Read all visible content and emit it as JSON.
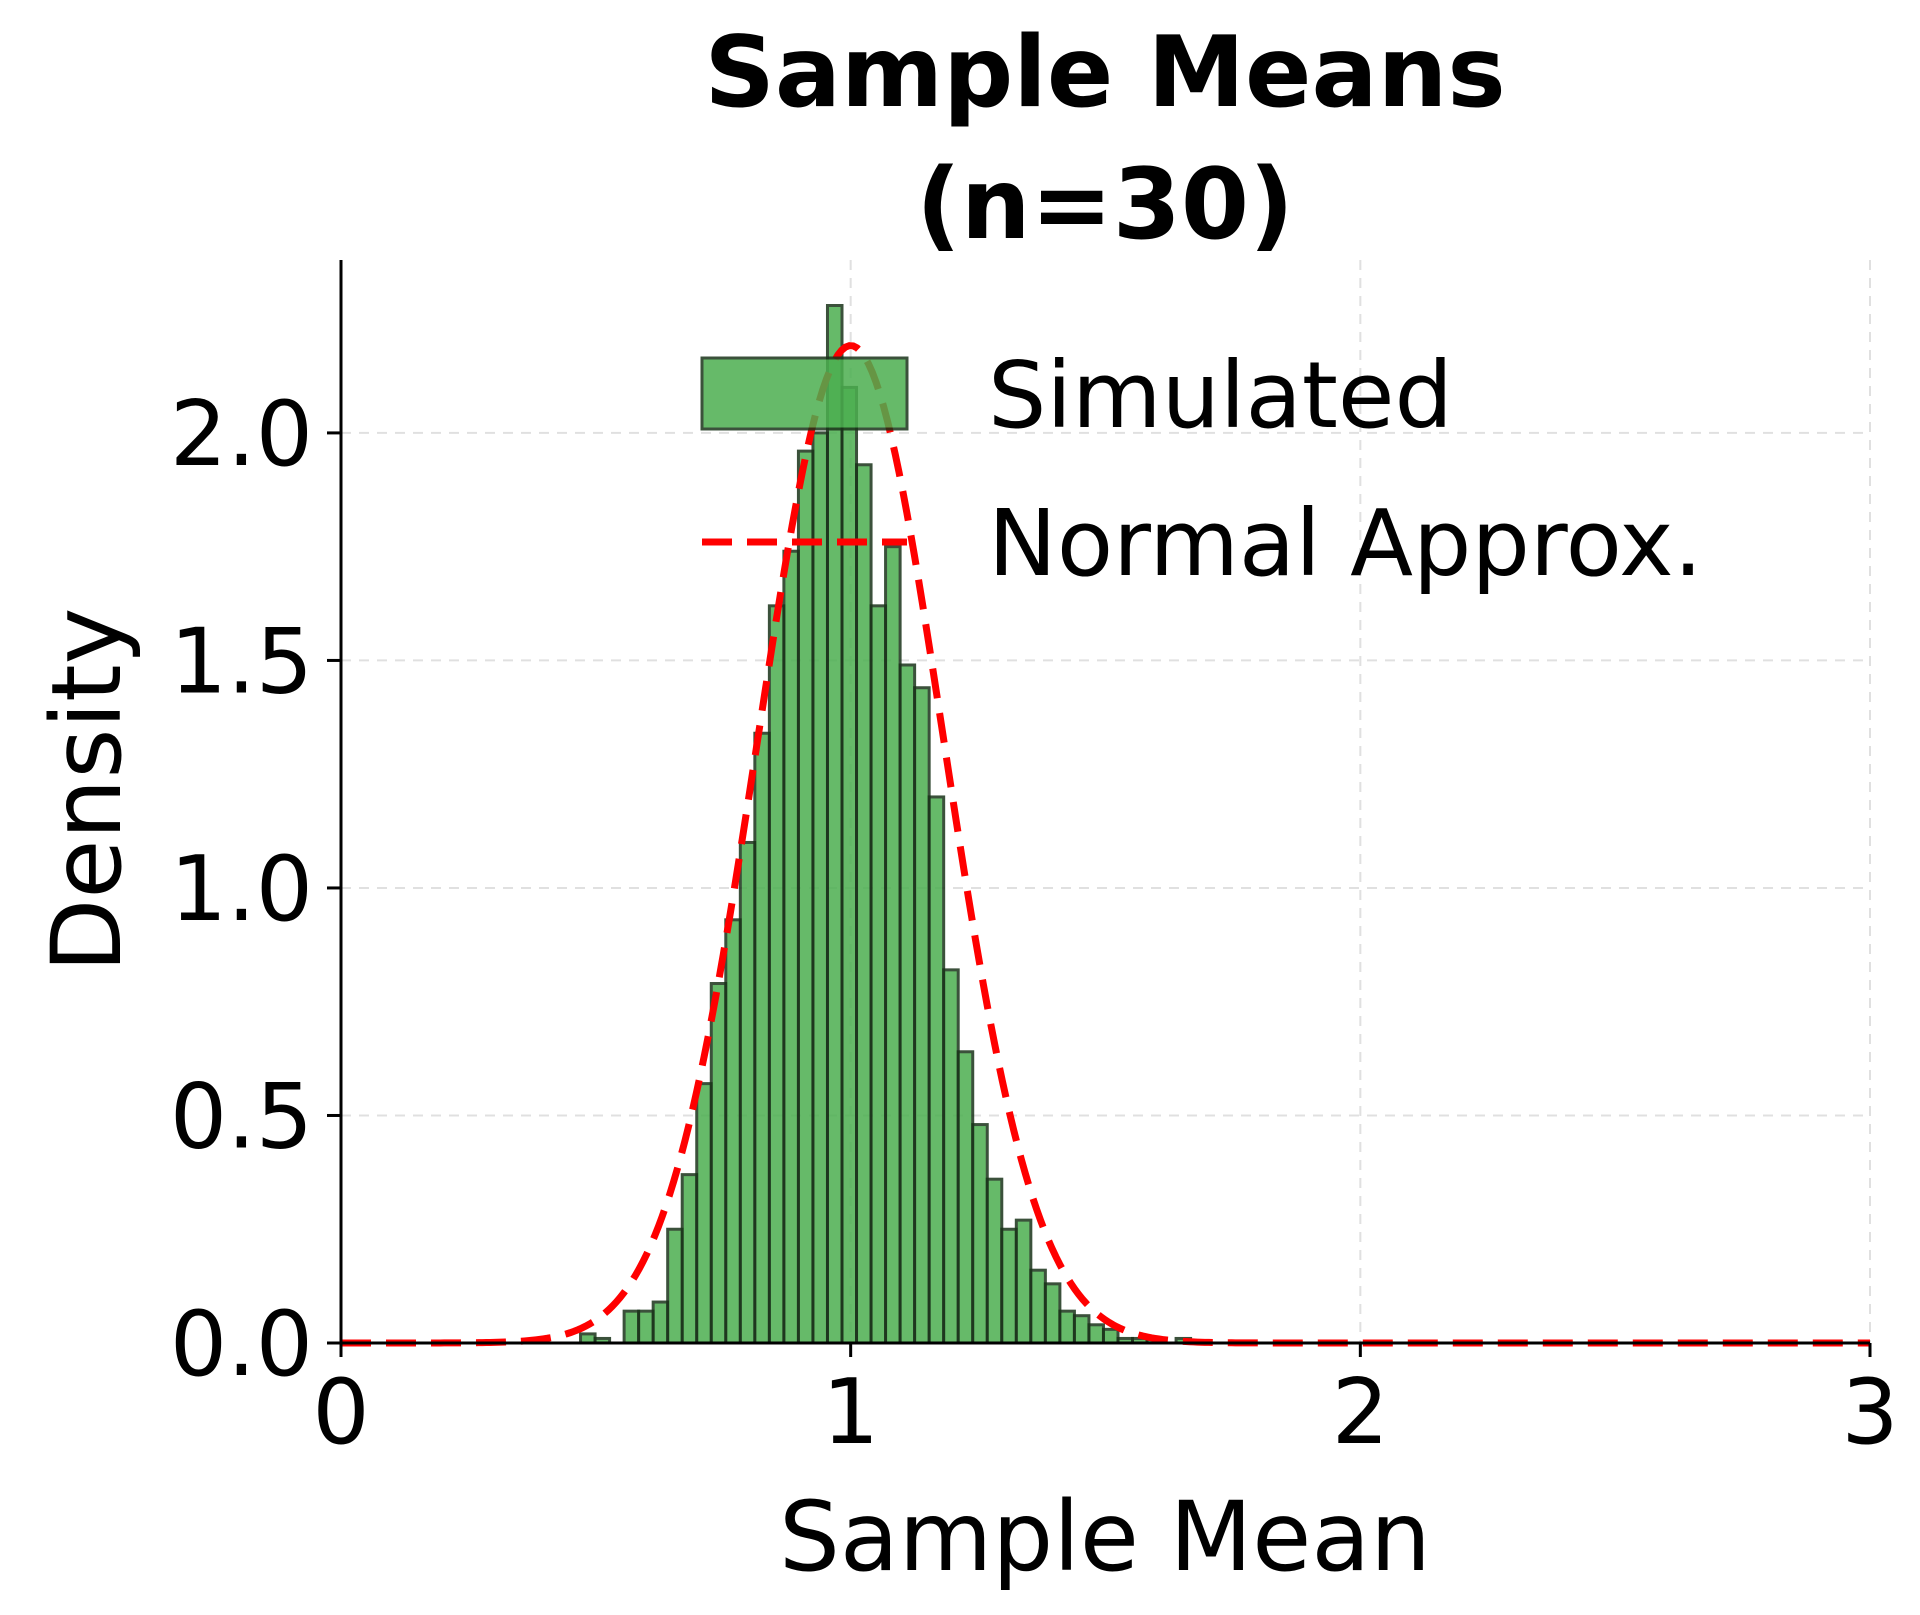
{
  "chart_data": {
    "type": "bar",
    "title_lines": [
      "Sample Means",
      "(n=30)"
    ],
    "xlabel": "Sample Mean",
    "ylabel": "Density",
    "xlim": [
      0,
      3
    ],
    "ylim": [
      0,
      2.38
    ],
    "xticks": [
      "0",
      "1",
      "2",
      "3"
    ],
    "yticks": [
      "0.0",
      "0.5",
      "1.0",
      "1.5",
      "2.0"
    ],
    "grid": true,
    "legend_position": "top-right",
    "colors": {
      "bar_fill": "#4caf50",
      "bar_edge": "#1a331a",
      "curve": "#ff0000",
      "grid": "#d9d9d9"
    },
    "series": [
      {
        "name": "Simulated",
        "kind": "histogram",
        "bin_start": 0.47,
        "bin_width": 0.0285,
        "values": [
          0.02,
          0.01,
          0.0,
          0.07,
          0.07,
          0.09,
          0.25,
          0.37,
          0.57,
          0.79,
          0.93,
          1.1,
          1.34,
          1.62,
          1.74,
          1.96,
          2.0,
          2.28,
          2.1,
          1.93,
          1.62,
          1.75,
          1.49,
          1.44,
          1.2,
          0.82,
          0.64,
          0.48,
          0.36,
          0.25,
          0.27,
          0.16,
          0.13,
          0.07,
          0.06,
          0.04,
          0.03,
          0.01,
          0.01,
          0.01,
          0.0,
          0.01
        ]
      },
      {
        "name": "Normal Approx.",
        "kind": "normal_pdf",
        "mean": 1.0,
        "std": 0.182
      }
    ]
  }
}
